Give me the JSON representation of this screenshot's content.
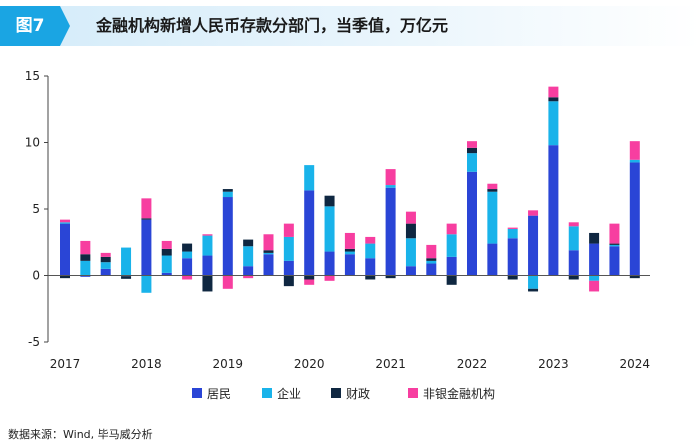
{
  "header": {
    "figure_label": "图7",
    "title": "金融机构新增人民币存款分部门，当季值，万亿元"
  },
  "source": "数据来源：Wind, 毕马威分析",
  "chart_data": {
    "type": "bar",
    "stacked": true,
    "title": "金融机构新增人民币存款分部门，当季值，万亿元",
    "xlabel": "",
    "ylabel": "",
    "ylim": [
      -5,
      15
    ],
    "yticks": [
      -5,
      0,
      5,
      10,
      15
    ],
    "grid": false,
    "legend_position": "bottom",
    "categories": [
      "2017Q1",
      "2017Q2",
      "2017Q3",
      "2017Q4",
      "2018Q1",
      "2018Q2",
      "2018Q3",
      "2018Q4",
      "2019Q1",
      "2019Q2",
      "2019Q3",
      "2019Q4",
      "2020Q1",
      "2020Q2",
      "2020Q3",
      "2020Q4",
      "2021Q1",
      "2021Q2",
      "2021Q3",
      "2021Q4",
      "2022Q1",
      "2022Q2",
      "2022Q3",
      "2022Q4",
      "2023Q1",
      "2023Q2",
      "2023Q3",
      "2023Q4",
      "2024Q1"
    ],
    "year_labels": [
      "2017",
      "2018",
      "2019",
      "2020",
      "2021",
      "2022",
      "2023",
      "2024"
    ],
    "series": [
      {
        "name": "居民",
        "color": "#2a45d6",
        "values": [
          3.9,
          -0.1,
          0.5,
          -0.05,
          4.2,
          0.2,
          1.3,
          1.5,
          5.9,
          0.7,
          1.6,
          1.1,
          6.4,
          1.8,
          1.6,
          1.3,
          6.6,
          0.7,
          0.9,
          1.4,
          7.8,
          2.4,
          2.8,
          4.5,
          9.8,
          1.9,
          2.4,
          2.2,
          8.5
        ]
      },
      {
        "name": "企业",
        "color": "#19b3ea",
        "values": [
          0.1,
          1.1,
          0.5,
          2.1,
          -1.3,
          1.3,
          0.5,
          1.5,
          0.4,
          1.5,
          0.1,
          1.8,
          1.9,
          3.4,
          0.2,
          1.1,
          0.2,
          2.1,
          0.2,
          1.7,
          1.4,
          3.9,
          0.7,
          -1.0,
          3.3,
          1.8,
          -0.4,
          0.1,
          0.2
        ]
      },
      {
        "name": "财政",
        "color": "#0f2741",
        "values": [
          -0.2,
          0.5,
          0.4,
          -0.2,
          0.1,
          0.5,
          0.6,
          -1.2,
          0.2,
          0.5,
          0.2,
          -0.8,
          -0.3,
          0.8,
          0.2,
          -0.3,
          -0.2,
          1.1,
          0.2,
          -0.7,
          0.4,
          0.2,
          -0.3,
          -0.2,
          0.3,
          -0.3,
          0.8,
          0.1,
          -0.2
        ]
      },
      {
        "name": "非银金融机构",
        "color": "#f73ea0",
        "values": [
          0.2,
          1.0,
          0.3,
          0.0,
          1.5,
          0.6,
          -0.3,
          0.1,
          -1.0,
          -0.2,
          1.2,
          1.0,
          -0.4,
          -0.4,
          1.2,
          0.5,
          1.2,
          0.9,
          1.0,
          0.8,
          0.5,
          0.4,
          0.1,
          0.4,
          0.8,
          0.3,
          -0.8,
          1.5,
          1.4
        ]
      }
    ]
  }
}
